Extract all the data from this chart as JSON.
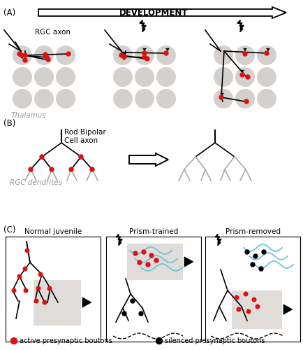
{
  "fig_width": 4.34,
  "fig_height": 5.0,
  "dpi": 100,
  "bg_color": "#ffffff",
  "gray_circle_color": "#d4d0ce",
  "red_bouton_color": "#dd1111",
  "black_color": "#000000",
  "gray_text_color": "#999999",
  "blue_color": "#6ec6d8",
  "gray_box_color": "#d8d4d0",
  "panel_labels": [
    "(A)",
    "(B)",
    "(C)"
  ],
  "dev_arrow_text": "DEVELOPMENT",
  "section_C_titles": [
    "Normal juvenile",
    "Prism-trained",
    "Prism-removed"
  ],
  "legend_labels": [
    "active presynaptic boutons",
    "silenced presynaptic boutons"
  ]
}
